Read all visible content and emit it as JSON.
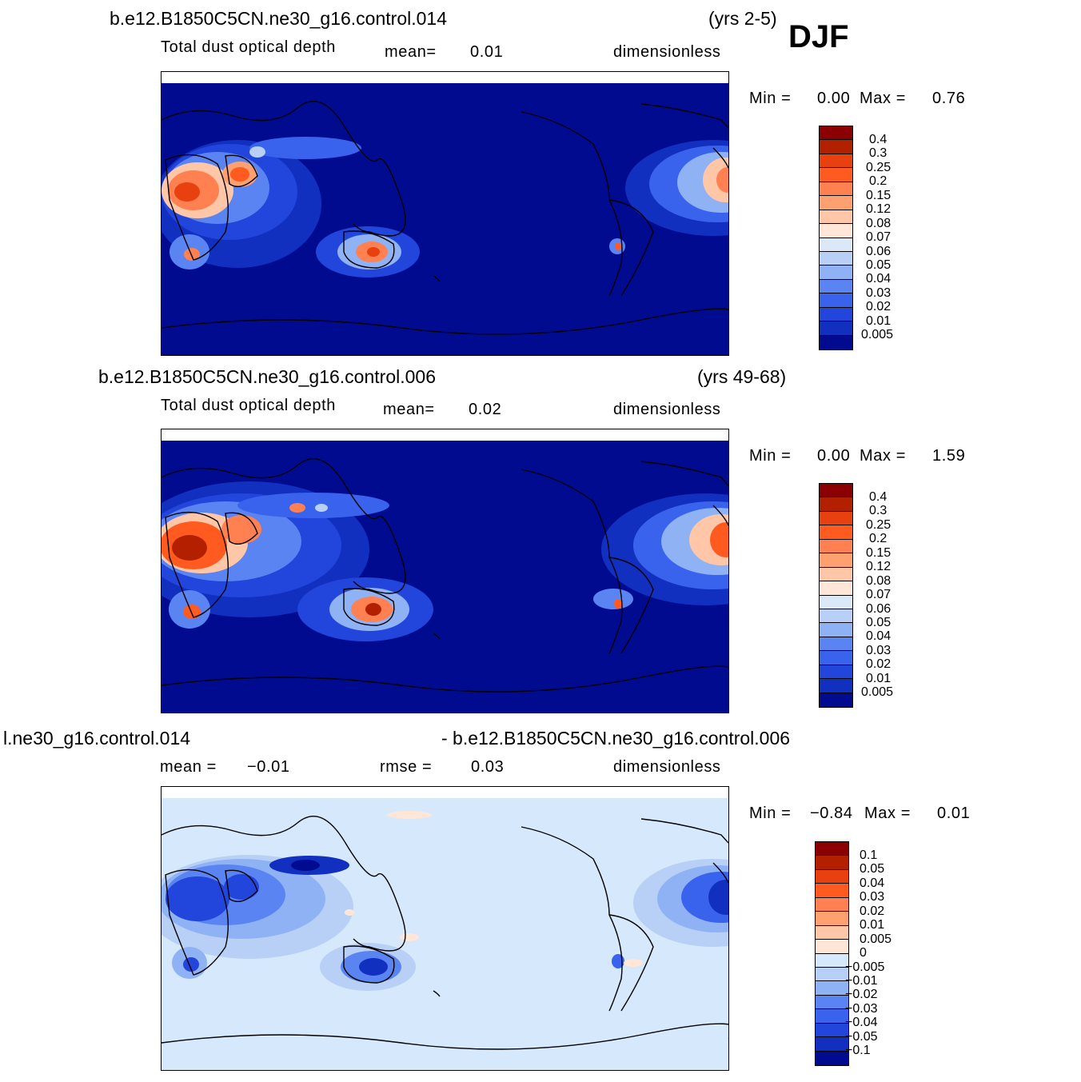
{
  "season": "DJF",
  "panels": [
    {
      "case_name": "b.e12.B1850C5CN.ne30_g16.control.014",
      "years": "(yrs 2-5)",
      "variable": "Total dust optical depth",
      "stat_label": "mean=",
      "stat_value": "0.01",
      "units": "dimensionless",
      "min_label": "Min =",
      "min_value": "0.00",
      "max_label": "Max =",
      "max_value": "0.76",
      "colorbar": {
        "labels": [
          "0.4",
          "0.3",
          "0.25",
          "0.2",
          "0.15",
          "0.12",
          "0.08",
          "0.07",
          "0.06",
          "0.05",
          "0.04",
          "0.03",
          "0.02",
          "0.01",
          "0.005"
        ],
        "colors": [
          "#8b0000",
          "#b32000",
          "#e8400e",
          "#ff5a1f",
          "#ff8050",
          "#ffa070",
          "#ffc6a8",
          "#ffe6d6",
          "#dbe8f8",
          "#b8d0f6",
          "#8fb2f5",
          "#5a84f2",
          "#3a63ed",
          "#2246dc",
          "#1230c0",
          "#000b8f"
        ]
      }
    },
    {
      "case_name": "b.e12.B1850C5CN.ne30_g16.control.006",
      "years": "(yrs 49-68)",
      "variable": "Total dust optical depth",
      "stat_label": "mean=",
      "stat_value": "0.02",
      "units": "dimensionless",
      "min_label": "Min =",
      "min_value": "0.00",
      "max_label": "Max =",
      "max_value": "1.59",
      "colorbar": {
        "labels": [
          "0.4",
          "0.3",
          "0.25",
          "0.2",
          "0.15",
          "0.12",
          "0.08",
          "0.07",
          "0.06",
          "0.05",
          "0.04",
          "0.03",
          "0.02",
          "0.01",
          "0.005"
        ],
        "colors": [
          "#8b0000",
          "#b32000",
          "#e8400e",
          "#ff5a1f",
          "#ff8050",
          "#ffa070",
          "#ffc6a8",
          "#ffe6d6",
          "#dbe8f8",
          "#b8d0f6",
          "#8fb2f5",
          "#5a84f2",
          "#3a63ed",
          "#2246dc",
          "#1230c0",
          "#000b8f"
        ]
      }
    },
    {
      "case_left": "l.ne30_g16.control.014",
      "case_right": "- b.e12.B1850C5CN.ne30_g16.control.006",
      "mean_label": "mean =",
      "mean_value": "−0.01",
      "rmse_label": "rmse =",
      "rmse_value": "0.03",
      "units": "dimensionless",
      "min_label": "Min =",
      "min_value": "−0.84",
      "max_label": "Max =",
      "max_value": "0.01",
      "colorbar": {
        "labels": [
          "0.1",
          "0.05",
          "0.04",
          "0.03",
          "0.02",
          "0.01",
          "0.005",
          "0",
          "−0.005",
          "−0.01",
          "−0.02",
          "−0.03",
          "−0.04",
          "−0.05",
          "−0.1"
        ],
        "colors": [
          "#8b0000",
          "#b32000",
          "#e8400e",
          "#ff5a1f",
          "#ff8050",
          "#ffa070",
          "#ffc6a8",
          "#ffe6d6",
          "#d6e8fc",
          "#b8d0f6",
          "#8fb2f5",
          "#5a84f2",
          "#3a63ed",
          "#2246dc",
          "#1230c0",
          "#000b8f"
        ]
      }
    }
  ],
  "colors": {
    "map_background": "#000b8f",
    "diff_background": "#d6e8fc"
  }
}
